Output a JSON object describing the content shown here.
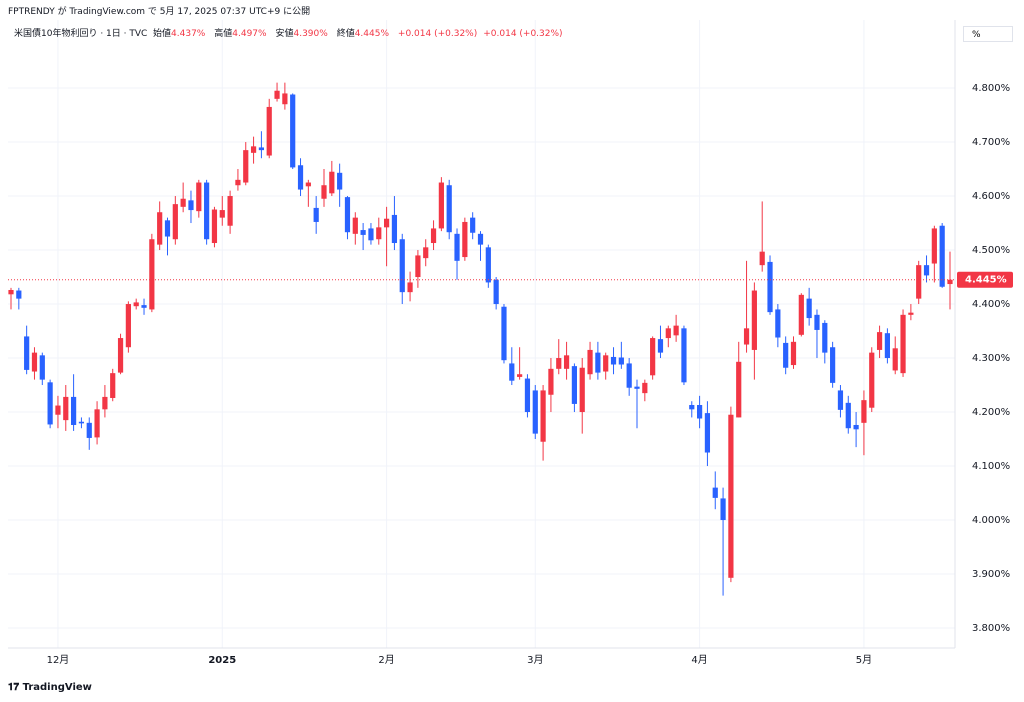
{
  "header": {
    "published": "FPTRENDY が TradingView.com で 5月 17, 2025 07:37 UTC+9 に公開",
    "symbol": "米国債10年物利回り · 1日 · TVC",
    "open_name": "始値",
    "open_text": "4.437%",
    "high_name": "高値",
    "high_text": "4.497%",
    "low_name": "安値",
    "low_text": "4.390%",
    "close_name": "終値",
    "close_text": "4.445%",
    "change_1": "+0.014 (+0.32%)",
    "change_2": "+0.014 (+0.32%)",
    "unit": "%"
  },
  "footer": {
    "brand": "TradingView"
  },
  "chart_data": {
    "type": "candlestick",
    "up_color": "#f23645",
    "down_color": "#2962ff",
    "grid": true,
    "ylim": [
      3.763,
      4.926
    ],
    "yticks": [
      {
        "value": 3.8,
        "label": "3.800%"
      },
      {
        "value": 3.9,
        "label": "3.900%"
      },
      {
        "value": 4.0,
        "label": "4.000%"
      },
      {
        "value": 4.1,
        "label": "4.100%"
      },
      {
        "value": 4.2,
        "label": "4.200%"
      },
      {
        "value": 4.3,
        "label": "4.300%"
      },
      {
        "value": 4.4,
        "label": "4.400%"
      },
      {
        "value": 4.5,
        "label": "4.500%"
      },
      {
        "value": 4.6,
        "label": "4.600%"
      },
      {
        "value": 4.7,
        "label": "4.700%"
      },
      {
        "value": 4.8,
        "label": "4.800%"
      }
    ],
    "xticks": [
      {
        "value": 6,
        "label": "12月"
      },
      {
        "value": 27,
        "label": "2025"
      },
      {
        "value": 48,
        "label": "2月"
      },
      {
        "value": 67,
        "label": "3月"
      },
      {
        "value": 88,
        "label": "4月"
      },
      {
        "value": 109,
        "label": "5月"
      }
    ],
    "last_price": {
      "value": 4.445,
      "label": "4.445%"
    },
    "open": [
      4.418,
      4.425,
      4.34,
      4.275,
      4.305,
      4.255,
      4.195,
      4.185,
      4.228,
      4.182,
      4.18,
      4.153,
      4.205,
      4.226,
      4.273,
      4.32,
      4.396,
      4.398,
      4.39,
      4.51,
      4.555,
      4.52,
      4.58,
      4.592,
      4.572,
      4.625,
      4.513,
      4.56,
      4.545,
      4.62,
      4.625,
      4.68,
      4.69,
      4.675,
      4.78,
      4.77,
      4.788,
      4.657,
      4.618,
      4.578,
      4.595,
      4.605,
      4.643,
      4.598,
      4.53,
      4.537,
      4.54,
      4.52,
      4.542,
      4.565,
      4.52,
      4.422,
      4.45,
      4.485,
      4.513,
      4.54,
      4.62,
      4.53,
      4.487,
      4.56,
      4.53,
      4.505,
      4.445,
      4.395,
      4.29,
      4.265,
      4.262,
      4.24,
      4.145,
      4.232,
      4.28,
      4.28,
      4.285,
      4.2,
      4.27,
      4.31,
      4.275,
      4.302,
      4.301,
      4.29,
      4.247,
      4.235,
      4.268,
      4.335,
      4.337,
      4.342,
      4.355,
      4.213,
      4.213,
      4.198,
      4.06,
      4.04,
      3.893,
      4.19,
      4.325,
      4.315,
      4.472,
      4.478,
      4.39,
      4.328,
      4.287,
      4.343,
      4.41,
      4.38,
      4.365,
      4.32,
      4.24,
      4.217,
      4.176,
      4.18,
      4.208,
      4.315,
      4.346,
      4.277,
      4.272,
      4.38,
      4.41,
      4.472,
      4.475,
      4.545,
      4.437
    ],
    "high": [
      4.43,
      4.43,
      4.36,
      4.32,
      4.31,
      4.26,
      4.23,
      4.25,
      4.27,
      4.19,
      4.19,
      4.22,
      4.25,
      4.28,
      4.345,
      4.405,
      4.41,
      4.41,
      4.53,
      4.59,
      4.56,
      4.6,
      4.625,
      4.61,
      4.63,
      4.63,
      4.58,
      4.6,
      4.61,
      4.65,
      4.7,
      4.71,
      4.72,
      4.78,
      4.81,
      4.81,
      4.79,
      4.67,
      4.63,
      4.6,
      4.65,
      4.665,
      4.66,
      4.6,
      4.57,
      4.55,
      4.55,
      4.56,
      4.58,
      4.6,
      4.53,
      4.46,
      4.5,
      4.52,
      4.555,
      4.635,
      4.63,
      4.54,
      4.56,
      4.57,
      4.535,
      4.51,
      4.45,
      4.4,
      4.32,
      4.32,
      4.27,
      4.25,
      4.25,
      4.3,
      4.335,
      4.33,
      4.29,
      4.3,
      4.33,
      4.33,
      4.31,
      4.32,
      4.33,
      4.3,
      4.26,
      4.26,
      4.34,
      4.36,
      4.36,
      4.38,
      4.36,
      4.22,
      4.23,
      4.22,
      4.09,
      4.06,
      4.21,
      4.33,
      4.48,
      4.44,
      4.59,
      4.49,
      4.4,
      4.34,
      4.34,
      4.42,
      4.43,
      4.39,
      4.37,
      4.33,
      4.25,
      4.23,
      4.2,
      4.24,
      4.32,
      4.36,
      4.355,
      4.34,
      4.39,
      4.4,
      4.48,
      4.49,
      4.545,
      4.55,
      4.497
    ],
    "low": [
      4.39,
      4.39,
      4.27,
      4.26,
      4.25,
      4.17,
      4.17,
      4.165,
      4.165,
      4.17,
      4.13,
      4.14,
      4.19,
      4.22,
      4.27,
      4.31,
      4.39,
      4.38,
      4.385,
      4.5,
      4.49,
      4.51,
      4.57,
      4.55,
      4.56,
      4.51,
      4.505,
      4.545,
      4.53,
      4.61,
      4.62,
      4.66,
      4.67,
      4.67,
      4.775,
      4.76,
      4.65,
      4.6,
      4.58,
      4.53,
      4.58,
      4.6,
      4.58,
      4.52,
      4.51,
      4.5,
      4.51,
      4.51,
      4.47,
      4.5,
      4.4,
      4.405,
      4.43,
      4.47,
      4.5,
      4.535,
      4.52,
      4.445,
      4.48,
      4.52,
      4.48,
      4.43,
      4.39,
      4.29,
      4.25,
      4.26,
      4.19,
      4.15,
      4.11,
      4.2,
      4.27,
      4.26,
      4.2,
      4.16,
      4.26,
      4.26,
      4.26,
      4.27,
      4.28,
      4.23,
      4.17,
      4.22,
      4.26,
      4.3,
      4.32,
      4.33,
      4.25,
      4.19,
      4.17,
      4.1,
      4.02,
      3.86,
      3.885,
      4.19,
      4.31,
      4.26,
      4.46,
      4.38,
      4.32,
      4.27,
      4.28,
      4.34,
      4.36,
      4.3,
      4.29,
      4.245,
      4.19,
      4.16,
      4.135,
      4.12,
      4.2,
      4.3,
      4.29,
      4.27,
      4.265,
      4.37,
      4.4,
      4.44,
      4.44,
      4.43,
      4.39
    ],
    "close": [
      4.426,
      4.41,
      4.278,
      4.31,
      4.26,
      4.177,
      4.212,
      4.228,
      4.176,
      4.179,
      4.152,
      4.205,
      4.228,
      4.272,
      4.337,
      4.4,
      4.403,
      4.393,
      4.52,
      4.57,
      4.525,
      4.585,
      4.595,
      4.574,
      4.625,
      4.52,
      4.575,
      4.574,
      4.6,
      4.63,
      4.685,
      4.692,
      4.685,
      4.765,
      4.795,
      4.79,
      4.653,
      4.612,
      4.625,
      4.552,
      4.62,
      4.645,
      4.612,
      4.533,
      4.56,
      4.528,
      4.518,
      4.542,
      4.558,
      4.513,
      4.422,
      4.44,
      4.49,
      4.505,
      4.54,
      4.625,
      4.533,
      4.48,
      4.552,
      4.532,
      4.51,
      4.44,
      4.4,
      4.296,
      4.258,
      4.27,
      4.2,
      4.16,
      4.24,
      4.28,
      4.3,
      4.305,
      4.215,
      4.282,
      4.315,
      4.273,
      4.305,
      4.288,
      4.288,
      4.245,
      4.243,
      4.254,
      4.337,
      4.31,
      4.355,
      4.36,
      4.255,
      4.205,
      4.188,
      4.125,
      4.041,
      4.0,
      4.195,
      4.293,
      4.355,
      4.425,
      4.497,
      4.385,
      4.338,
      4.282,
      4.33,
      4.417,
      4.374,
      4.352,
      4.31,
      4.254,
      4.204,
      4.17,
      4.168,
      4.222,
      4.31,
      4.348,
      4.3,
      4.318,
      4.38,
      4.384,
      4.472,
      4.453,
      4.54,
      4.432,
      4.445
    ]
  }
}
